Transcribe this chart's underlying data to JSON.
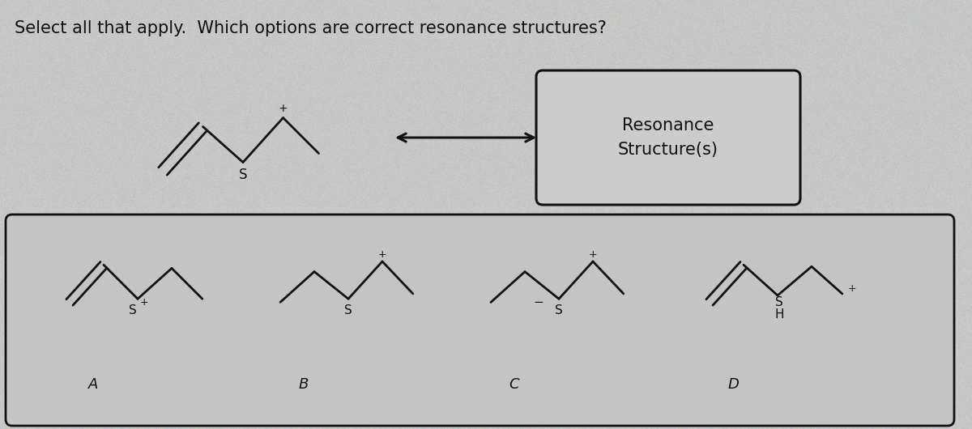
{
  "title": "Select all that apply.  Which options are correct resonance structures?",
  "title_fontsize": 15,
  "bg_color": "#c8c8c8",
  "text_color": "#111111",
  "resonance_box_text": "Resonance\nStructure(s)",
  "option_labels": [
    "A",
    "B",
    "C",
    "D"
  ],
  "option_label_fontsize": 13
}
